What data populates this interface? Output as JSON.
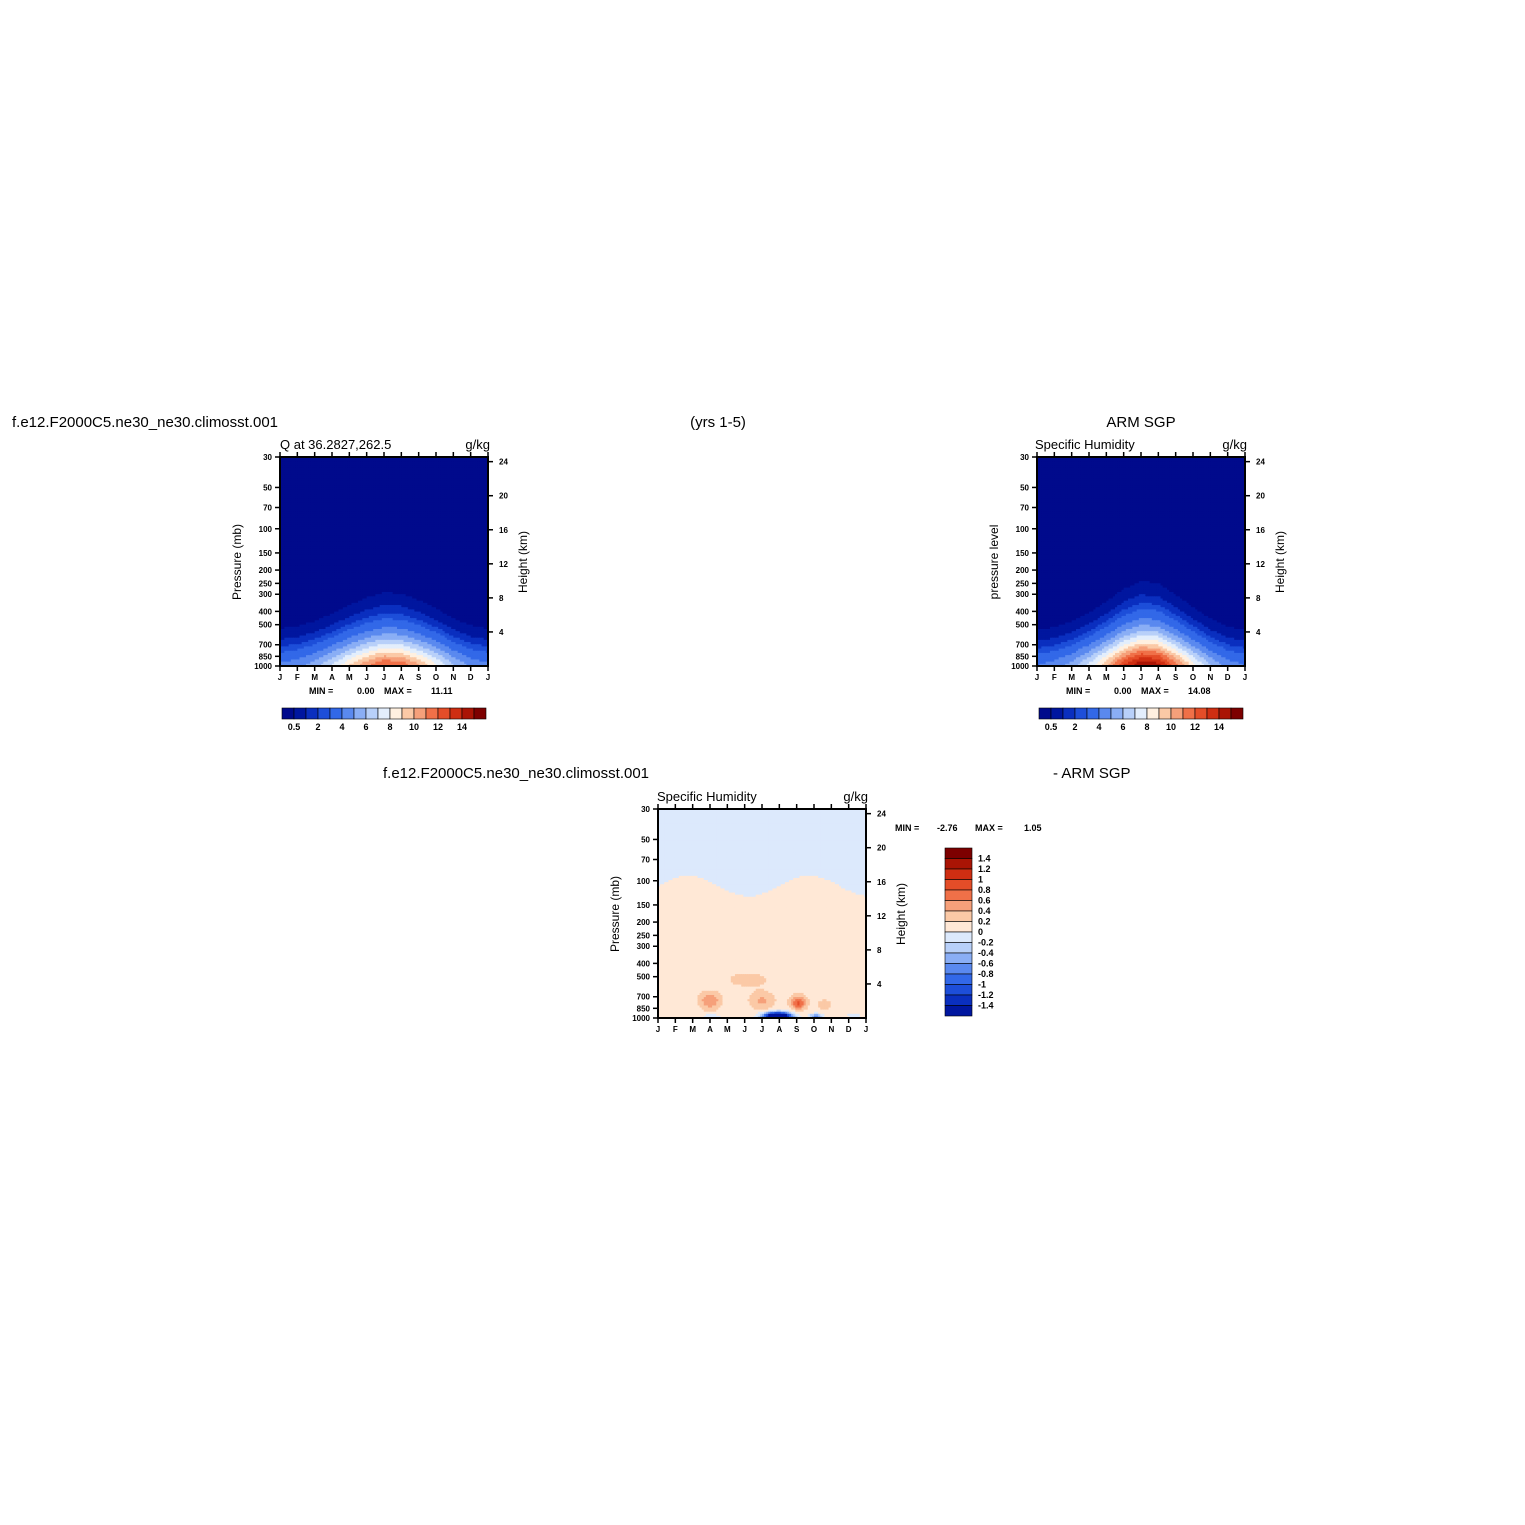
{
  "header": {
    "case_name_top": "f.e12.F2000C5.ne30_ne30.climosst.001",
    "years": "(yrs 1-5)",
    "obs_name": "ARM SGP",
    "case_name_bottom": "f.e12.F2000C5.ne30_ne30.climosst.001",
    "diff_suffix": "- ARM SGP"
  },
  "palettes": {
    "sequential": [
      "#000a8c",
      "#00169f",
      "#0a2fbf",
      "#1d4ed9",
      "#3268e8",
      "#5a89ef",
      "#8aaef5",
      "#b8d0f9",
      "#e3eefc",
      "#fff0e0",
      "#fbc9a6",
      "#f6a07a",
      "#f07048",
      "#e44d28",
      "#cf2e12",
      "#aa1405",
      "#7d0000"
    ],
    "diverging": [
      "#000a8c",
      "#00169f",
      "#0a2fbf",
      "#1d4ed9",
      "#3268e8",
      "#5a89ef",
      "#8aaef5",
      "#b8d0f9",
      "#dce9fc",
      "#ffe8d6",
      "#fbc9a6",
      "#f6a07a",
      "#f07048",
      "#e44d28",
      "#cf2e12",
      "#aa1405",
      "#7d0000"
    ]
  },
  "chart_data": [
    {
      "type": "heatmap",
      "panel": "model",
      "title_left": "Q at 36.2827,262.5",
      "title_right": "g/kg",
      "ylabel": "Pressure (mb)",
      "y2label": "Height (km)",
      "x_ticks": [
        "J",
        "F",
        "M",
        "A",
        "M",
        "J",
        "J",
        "A",
        "S",
        "O",
        "N",
        "D",
        "J"
      ],
      "y_ticks": [
        30,
        50,
        70,
        100,
        150,
        200,
        250,
        300,
        400,
        500,
        700,
        850,
        1000
      ],
      "y2_ticks": [
        4,
        8,
        12,
        16,
        20,
        24
      ],
      "ylim": [
        30,
        1000
      ],
      "y_scale": "log",
      "stats": {
        "min_label": "MIN =",
        "min_value": "0.00",
        "max_label": "MAX =",
        "max_value": "11.11"
      },
      "min": 0.0,
      "max": 11.11,
      "levels": [
        0.5,
        1,
        1.5,
        2,
        3,
        4,
        5,
        6,
        7,
        8,
        9,
        10,
        11,
        12,
        13,
        14
      ],
      "colorbar_labels": [
        "0.5",
        "2",
        "4",
        "6",
        "8",
        "10",
        "12",
        "14"
      ],
      "surface_q_monthly": [
        3.2,
        3.6,
        4.5,
        6.0,
        8.0,
        9.8,
        11.1,
        10.8,
        9.2,
        7.2,
        5.0,
        3.7,
        3.2
      ]
    },
    {
      "type": "heatmap",
      "panel": "observation",
      "title_left": "Specific Humidity",
      "title_right": "g/kg",
      "ylabel": "pressure level",
      "y2label": "Height (km)",
      "x_ticks": [
        "J",
        "F",
        "M",
        "A",
        "M",
        "J",
        "J",
        "A",
        "S",
        "O",
        "N",
        "D",
        "J"
      ],
      "y_ticks": [
        30,
        50,
        70,
        100,
        150,
        200,
        250,
        300,
        400,
        500,
        700,
        850,
        1000
      ],
      "y2_ticks": [
        4,
        8,
        12,
        16,
        20,
        24
      ],
      "ylim": [
        30,
        1000
      ],
      "y_scale": "log",
      "stats": {
        "min_label": "MIN =",
        "min_value": "0.00",
        "max_label": "MAX =",
        "max_value": "14.08"
      },
      "min": 0.0,
      "max": 14.08,
      "levels": [
        0.5,
        1,
        1.5,
        2,
        3,
        4,
        5,
        6,
        7,
        8,
        9,
        10,
        11,
        12,
        13,
        14
      ],
      "colorbar_labels": [
        "0.5",
        "2",
        "4",
        "6",
        "8",
        "10",
        "12",
        "14"
      ],
      "surface_q_monthly": [
        3.0,
        3.4,
        4.4,
        6.2,
        8.8,
        12.0,
        14.0,
        13.5,
        10.5,
        7.5,
        5.0,
        3.5,
        3.0
      ]
    },
    {
      "type": "heatmap",
      "panel": "difference",
      "title_left": "Specific Humidity",
      "title_right": "g/kg",
      "ylabel": "Pressure (mb)",
      "y2label": "Height (km)",
      "x_ticks": [
        "J",
        "F",
        "M",
        "A",
        "M",
        "J",
        "J",
        "A",
        "S",
        "O",
        "N",
        "D",
        "J"
      ],
      "y_ticks": [
        30,
        50,
        70,
        100,
        150,
        200,
        250,
        300,
        400,
        500,
        700,
        850,
        1000
      ],
      "y2_ticks": [
        4,
        8,
        12,
        16,
        20,
        24
      ],
      "ylim": [
        30,
        1000
      ],
      "y_scale": "log",
      "stats": {
        "min_label": "MIN =",
        "min_value": "-2.76",
        "max_label": "MAX =",
        "max_value": "1.05"
      },
      "min": -2.76,
      "max": 1.05,
      "levels": [
        -1.4,
        -1.2,
        -1,
        -0.8,
        -0.6,
        -0.4,
        -0.2,
        0,
        0.2,
        0.4,
        0.6,
        0.8,
        1,
        1.2,
        1.4
      ],
      "colorbar_labels": [
        "1.4",
        "1.2",
        "1",
        "0.8",
        "0.6",
        "0.4",
        "0.2",
        "0",
        "-0.2",
        "-0.4",
        "-0.6",
        "-0.8",
        "-1",
        "-1.2",
        "-1.4"
      ]
    }
  ]
}
